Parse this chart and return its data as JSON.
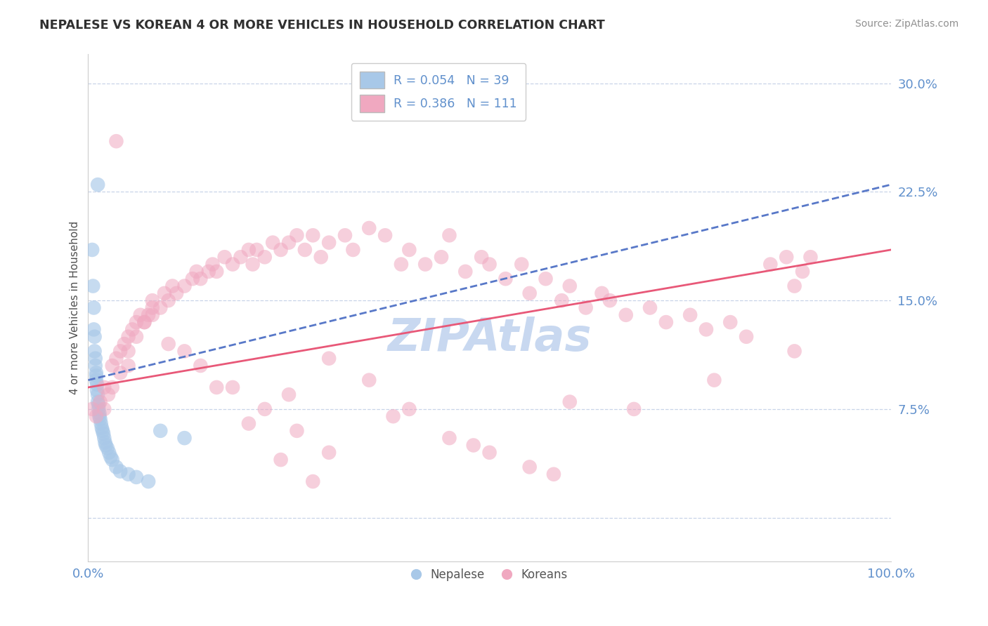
{
  "title": "NEPALESE VS KOREAN 4 OR MORE VEHICLES IN HOUSEHOLD CORRELATION CHART",
  "source": "Source: ZipAtlas.com",
  "ylabel": "4 or more Vehicles in Household",
  "xlim": [
    0,
    100
  ],
  "ylim": [
    -3,
    32
  ],
  "yticks": [
    0,
    7.5,
    15.0,
    22.5,
    30.0
  ],
  "xtick_labels": [
    "0.0%",
    "100.0%"
  ],
  "ytick_labels_right": [
    "",
    "7.5%",
    "15.0%",
    "22.5%",
    "30.0%"
  ],
  "nepalese_R": 0.054,
  "nepalese_N": 39,
  "korean_R": 0.386,
  "korean_N": 111,
  "nepalese_color": "#a8c8e8",
  "korean_color": "#f0a8c0",
  "nepalese_line_color": "#5878c8",
  "korean_line_color": "#e85878",
  "background_color": "#ffffff",
  "grid_color": "#c8d4e8",
  "watermark_color": "#c8d8f0",
  "tick_color": "#6090cc",
  "title_color": "#303030",
  "ylabel_color": "#505050",
  "source_color": "#909090",
  "nep_line_x0": 0,
  "nep_line_y0": 9.5,
  "nep_line_x1": 100,
  "nep_line_y1": 23.0,
  "kor_line_x0": 0,
  "kor_line_y0": 9.0,
  "kor_line_x1": 100,
  "kor_line_y1": 18.5,
  "nepalese_x": [
    0.5,
    0.6,
    0.7,
    0.7,
    0.8,
    0.8,
    0.9,
    0.9,
    1.0,
    1.0,
    1.0,
    1.1,
    1.1,
    1.2,
    1.2,
    1.3,
    1.3,
    1.4,
    1.4,
    1.5,
    1.6,
    1.7,
    1.8,
    1.9,
    2.0,
    2.1,
    2.2,
    2.4,
    2.6,
    2.8,
    3.0,
    3.5,
    4.0,
    5.0,
    6.0,
    7.5,
    9.0,
    12.0,
    1.2
  ],
  "nepalese_y": [
    18.5,
    16.0,
    14.5,
    13.0,
    12.5,
    11.5,
    11.0,
    10.5,
    10.0,
    9.8,
    9.5,
    9.2,
    8.8,
    8.5,
    8.0,
    7.8,
    7.5,
    7.2,
    7.0,
    6.8,
    6.5,
    6.2,
    6.0,
    5.8,
    5.5,
    5.2,
    5.0,
    4.8,
    4.5,
    4.2,
    4.0,
    3.5,
    3.2,
    3.0,
    2.8,
    2.5,
    6.0,
    5.5,
    23.0
  ],
  "korean_x": [
    0.5,
    1.0,
    1.5,
    2.0,
    2.0,
    2.5,
    3.0,
    3.0,
    3.5,
    4.0,
    4.0,
    4.5,
    5.0,
    5.0,
    5.5,
    6.0,
    6.0,
    6.5,
    7.0,
    7.5,
    8.0,
    8.0,
    9.0,
    9.5,
    10.0,
    10.5,
    11.0,
    12.0,
    13.0,
    13.5,
    14.0,
    15.0,
    15.5,
    16.0,
    17.0,
    18.0,
    19.0,
    20.0,
    20.5,
    21.0,
    22.0,
    23.0,
    24.0,
    25.0,
    26.0,
    27.0,
    28.0,
    29.0,
    30.0,
    32.0,
    33.0,
    35.0,
    37.0,
    39.0,
    40.0,
    42.0,
    44.0,
    45.0,
    47.0,
    49.0,
    50.0,
    52.0,
    54.0,
    55.0,
    57.0,
    59.0,
    60.0,
    62.0,
    64.0,
    65.0,
    67.0,
    70.0,
    72.0,
    75.0,
    77.0,
    80.0,
    82.0,
    85.0,
    87.0,
    88.0,
    89.0,
    90.0,
    25.0,
    30.0,
    35.0,
    40.0,
    45.0,
    50.0,
    55.0,
    60.0,
    5.0,
    7.0,
    10.0,
    14.0,
    18.0,
    22.0,
    26.0,
    30.0,
    8.0,
    12.0,
    16.0,
    20.0,
    24.0,
    28.0,
    38.0,
    48.0,
    58.0,
    68.0,
    78.0,
    88.0,
    3.5
  ],
  "korean_y": [
    7.5,
    7.0,
    8.0,
    7.5,
    9.0,
    8.5,
    9.0,
    10.5,
    11.0,
    10.0,
    11.5,
    12.0,
    11.5,
    12.5,
    13.0,
    12.5,
    13.5,
    14.0,
    13.5,
    14.0,
    14.5,
    15.0,
    14.5,
    15.5,
    15.0,
    16.0,
    15.5,
    16.0,
    16.5,
    17.0,
    16.5,
    17.0,
    17.5,
    17.0,
    18.0,
    17.5,
    18.0,
    18.5,
    17.5,
    18.5,
    18.0,
    19.0,
    18.5,
    19.0,
    19.5,
    18.5,
    19.5,
    18.0,
    19.0,
    19.5,
    18.5,
    20.0,
    19.5,
    17.5,
    18.5,
    17.5,
    18.0,
    19.5,
    17.0,
    18.0,
    17.5,
    16.5,
    17.5,
    15.5,
    16.5,
    15.0,
    16.0,
    14.5,
    15.5,
    15.0,
    14.0,
    14.5,
    13.5,
    14.0,
    13.0,
    13.5,
    12.5,
    17.5,
    18.0,
    16.0,
    17.0,
    18.0,
    8.5,
    11.0,
    9.5,
    7.5,
    5.5,
    4.5,
    3.5,
    8.0,
    10.5,
    13.5,
    12.0,
    10.5,
    9.0,
    7.5,
    6.0,
    4.5,
    14.0,
    11.5,
    9.0,
    6.5,
    4.0,
    2.5,
    7.0,
    5.0,
    3.0,
    7.5,
    9.5,
    11.5,
    26.0
  ]
}
